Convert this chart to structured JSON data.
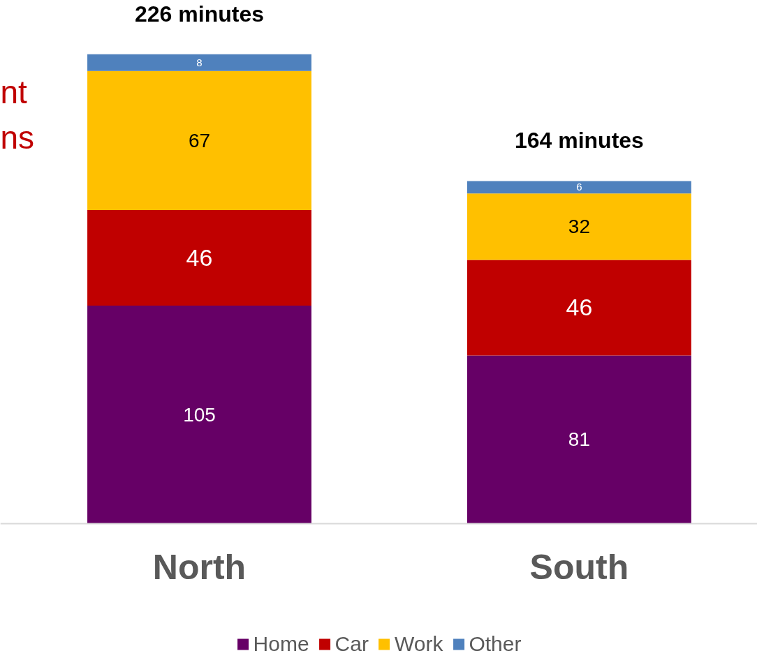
{
  "chart_data": {
    "type": "bar",
    "stacked": true,
    "categories": [
      "North",
      "South"
    ],
    "series": [
      {
        "name": "Home",
        "color": "#660066",
        "values": [
          105,
          81
        ]
      },
      {
        "name": "Car",
        "color": "#c00000",
        "values": [
          46,
          46
        ]
      },
      {
        "name": "Work",
        "color": "#ffc000",
        "values": [
          67,
          32
        ]
      },
      {
        "name": "Other",
        "color": "#4f81bd",
        "values": [
          8,
          6
        ]
      }
    ],
    "totals": [
      "226 minutes",
      "164 minutes"
    ],
    "data_labels": true,
    "legend": "bottom",
    "grid": false,
    "annotations": [
      "nt",
      "ns"
    ]
  }
}
